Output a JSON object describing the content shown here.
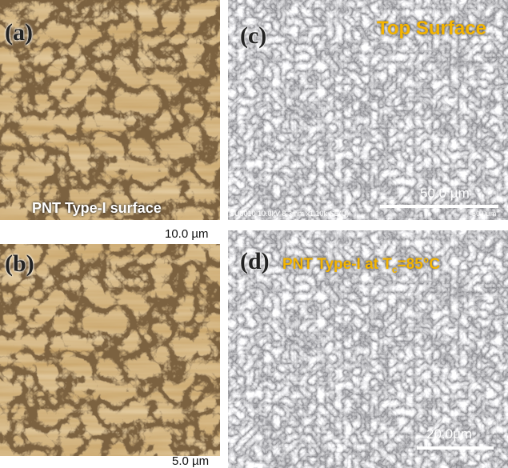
{
  "panels": [
    {
      "label": "(a)",
      "caption": "PNT Type-I surface",
      "scale": "10.0 µm"
    },
    {
      "label": "(b)",
      "scale": "5.0 µm"
    },
    {
      "label": "(c)",
      "caption": "Top Surface",
      "scale": "50.0 µm",
      "footer": "SU8010 10.0kV 8.3mm x1.10k SE(U)",
      "footer_scale": "50.0µm"
    },
    {
      "label": "(d)",
      "caption": {
        "pre": "PNT Type-I at T",
        "sub": "c",
        "post": "=85°C"
      },
      "scale": "20.0µm"
    }
  ]
}
